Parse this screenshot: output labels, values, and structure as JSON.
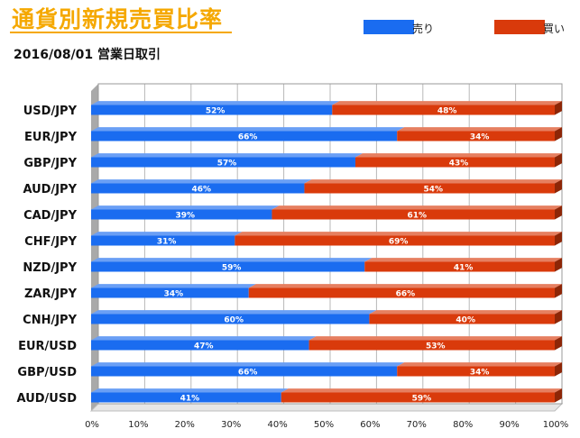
{
  "header": {
    "title": "通貨別新規売買比率",
    "subtitle": "2016/08/01 営業日取引"
  },
  "chart_data": {
    "type": "bar",
    "orientation": "horizontal",
    "stacked": true,
    "title": "通貨別新規売買比率",
    "subtitle": "2016/08/01 営業日取引",
    "categories": [
      "USD/JPY",
      "EUR/JPY",
      "GBP/JPY",
      "AUD/JPY",
      "CAD/JPY",
      "CHF/JPY",
      "NZD/JPY",
      "ZAR/JPY",
      "CNH/JPY",
      "EUR/USD",
      "GBP/USD",
      "AUD/USD"
    ],
    "series": [
      {
        "name": "売り",
        "color": "#1a6cf0",
        "values": [
          52,
          66,
          57,
          46,
          39,
          31,
          59,
          34,
          60,
          47,
          66,
          41
        ]
      },
      {
        "name": "買い",
        "color": "#d93a0b",
        "values": [
          48,
          34,
          43,
          54,
          61,
          69,
          41,
          66,
          40,
          53,
          34,
          59
        ]
      }
    ],
    "xlim": [
      0,
      100
    ],
    "xticks": [
      "0%",
      "10%",
      "20%",
      "30%",
      "40%",
      "50%",
      "60%",
      "70%",
      "80%",
      "90%",
      "100%"
    ],
    "grid": true,
    "legend": "top-right"
  }
}
